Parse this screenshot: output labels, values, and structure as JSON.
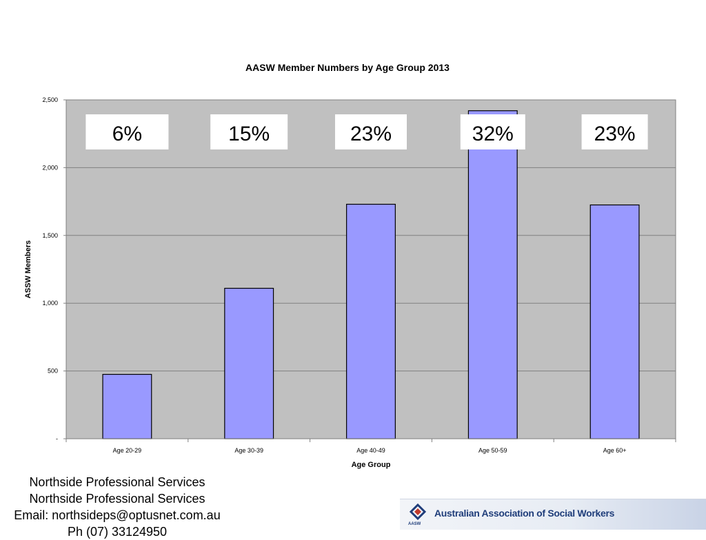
{
  "chart_data": {
    "type": "bar",
    "title": "AASW Member Numbers by Age Group 2013",
    "xlabel": "Age Group",
    "ylabel": "ASSW Members",
    "categories": [
      "Age 20-29",
      "Age 30-39",
      "Age 40-49",
      "Age 50-59",
      "Age 60+"
    ],
    "values": [
      475,
      1110,
      1730,
      2420,
      1725
    ],
    "percent_labels": [
      "6%",
      "15%",
      "23%",
      "32%",
      "23%"
    ],
    "ylim": [
      0,
      2500
    ],
    "yticks": [
      0,
      500,
      1000,
      1500,
      2000,
      2500
    ],
    "ytick_labels": [
      "-",
      "500",
      "1,000",
      "1,500",
      "2,000",
      "2,500"
    ],
    "grid": true,
    "legend": "none",
    "colors": {
      "plot_background": "#c0c0c0",
      "bar_fill": "#9999ff",
      "bar_stroke": "#000000",
      "gridline": "#808080",
      "label_box": "#ffffff"
    }
  },
  "footer": {
    "lines": [
      "Northside Professional Services",
      "Northside Professional Services",
      "Email: northsideps@optusnet.com.au",
      "Ph (07) 33124950"
    ]
  },
  "logo": {
    "text": "Australian Association of Social Workers",
    "mini_text": "AASW",
    "icon": "aasw-logo-icon"
  }
}
